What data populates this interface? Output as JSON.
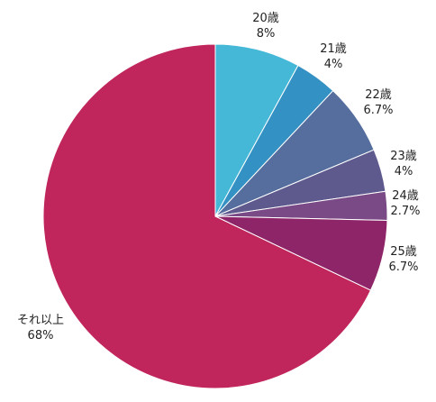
{
  "chart_data": {
    "type": "pie",
    "title": "",
    "legend": "none",
    "direction": "clockwise",
    "start": "top",
    "slices": [
      {
        "label": "20歳",
        "value": 8,
        "value_label": "8%",
        "color": "#45B8D8"
      },
      {
        "label": "21歳",
        "value": 4,
        "value_label": "4%",
        "color": "#3491C4"
      },
      {
        "label": "22歳",
        "value": 6.7,
        "value_label": "6.7%",
        "color": "#566E9E"
      },
      {
        "label": "23歳",
        "value": 4,
        "value_label": "4%",
        "color": "#5E5A8E"
      },
      {
        "label": "24歳",
        "value": 2.7,
        "value_label": "2.7%",
        "color": "#7A4A86"
      },
      {
        "label": "25歳",
        "value": 6.7,
        "value_label": "6.7%",
        "color": "#8F2569"
      },
      {
        "label": "それ以上",
        "value": 68,
        "value_label": "68%",
        "color": "#C0265C"
      }
    ]
  }
}
